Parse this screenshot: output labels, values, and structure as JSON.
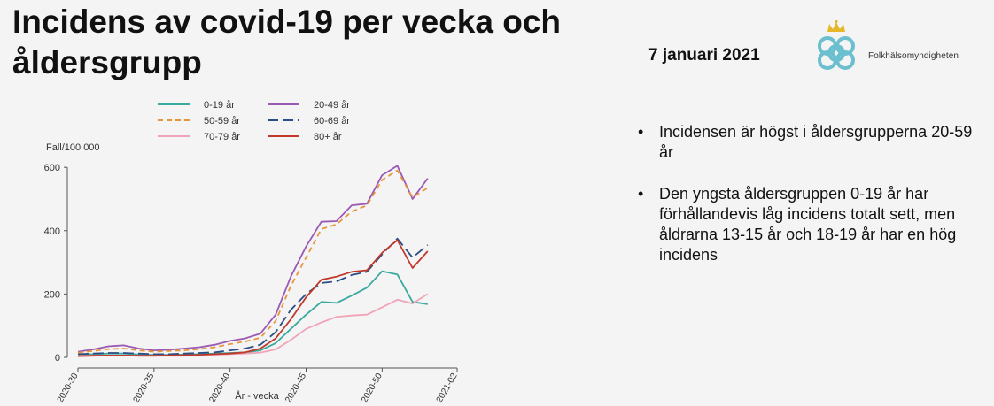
{
  "header": {
    "title": "Incidens av covid-19 per vecka och åldersgrupp",
    "date": "7 januari 2021",
    "logo_text": "Folkhälsomyndigheten"
  },
  "bullets": [
    "Incidensen är högst i åldersgrupperna 20-59 år",
    "Den yngsta åldersgruppen 0-19 år har förhållandevis låg incidens totalt sett, men åldrarna 13-15 år och 18-19 år har en hög incidens"
  ],
  "chart_data": {
    "type": "line",
    "title": "",
    "xlabel": "År - vecka",
    "ylabel": "Fall/100 000",
    "ylim": [
      0,
      620
    ],
    "yticks": [
      0,
      200,
      400,
      600
    ],
    "xticks": [
      "2020-30",
      "2020-35",
      "2020-40",
      "2020-45",
      "2020-50",
      "2021-02"
    ],
    "x": [
      "2020-30",
      "2020-31",
      "2020-32",
      "2020-33",
      "2020-34",
      "2020-35",
      "2020-36",
      "2020-37",
      "2020-38",
      "2020-39",
      "2020-40",
      "2020-41",
      "2020-42",
      "2020-43",
      "2020-44",
      "2020-45",
      "2020-46",
      "2020-47",
      "2020-48",
      "2020-49",
      "2020-50",
      "2020-51",
      "2020-52",
      "2020-53",
      "2021-01"
    ],
    "legend_position": "top",
    "series": [
      {
        "name": "0-19 år",
        "color": "#3aaa9e",
        "dash": "",
        "values": [
          8,
          10,
          12,
          12,
          9,
          8,
          8,
          9,
          10,
          12,
          14,
          16,
          22,
          45,
          90,
          135,
          175,
          172,
          195,
          220,
          272,
          262,
          175,
          168,
          null
        ]
      },
      {
        "name": "20-49 år",
        "color": "#9b59b6",
        "dash": "",
        "values": [
          18,
          25,
          35,
          38,
          28,
          22,
          24,
          28,
          32,
          40,
          52,
          60,
          75,
          135,
          255,
          350,
          428,
          430,
          480,
          485,
          575,
          605,
          500,
          565,
          null
        ]
      },
      {
        "name": "50-59 år",
        "color": "#e8963c",
        "dash": "6,4",
        "values": [
          15,
          20,
          26,
          28,
          22,
          18,
          20,
          22,
          26,
          32,
          42,
          50,
          62,
          115,
          225,
          315,
          405,
          420,
          460,
          480,
          560,
          590,
          505,
          535,
          null
        ]
      },
      {
        "name": "60-69 år",
        "color": "#2c4e86",
        "dash": "12,5",
        "values": [
          10,
          12,
          14,
          14,
          12,
          10,
          10,
          12,
          14,
          16,
          22,
          28,
          40,
          80,
          150,
          200,
          235,
          240,
          260,
          270,
          325,
          375,
          315,
          355,
          null
        ]
      },
      {
        "name": "70-79 år",
        "color": "#f0a4b8",
        "dash": "",
        "values": [
          5,
          6,
          6,
          6,
          5,
          5,
          5,
          5,
          6,
          8,
          10,
          12,
          15,
          25,
          55,
          90,
          110,
          128,
          132,
          135,
          158,
          182,
          170,
          200,
          null
        ]
      },
      {
        "name": "80+ år",
        "color": "#c0392b",
        "dash": "",
        "values": [
          4,
          5,
          6,
          6,
          5,
          5,
          6,
          7,
          8,
          10,
          12,
          16,
          28,
          60,
          120,
          190,
          245,
          255,
          270,
          275,
          330,
          370,
          282,
          335,
          null
        ]
      }
    ]
  }
}
